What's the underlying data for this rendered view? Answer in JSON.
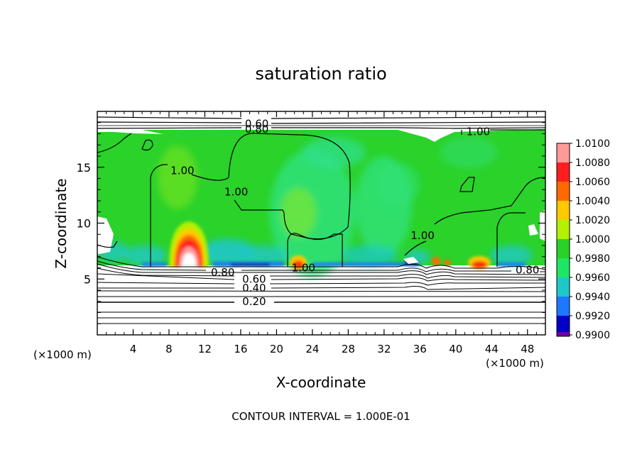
{
  "chart_data": {
    "type": "heatmap",
    "title": "saturation ratio",
    "xlabel": "X-coordinate",
    "ylabel": "Z-coordinate",
    "x_unit": "(×1000 m)",
    "z_unit": "(×1000 m)",
    "xlim": [
      0,
      50
    ],
    "ylim": [
      0,
      20
    ],
    "x_ticks": [
      4,
      8,
      12,
      16,
      20,
      24,
      28,
      32,
      36,
      40,
      44,
      48
    ],
    "y_ticks": [
      5,
      10,
      15
    ],
    "footer": "CONTOUR INTERVAL = 1.000E-01",
    "colorbar": {
      "levels": [
        "1.0100",
        "1.0080",
        "1.0060",
        "1.0040",
        "1.0020",
        "1.0000",
        "0.9980",
        "0.9960",
        "0.9940",
        "0.9920",
        "0.9900"
      ],
      "colors": [
        "#ff9a9a",
        "#ff1e1e",
        "#ff6a00",
        "#ffc800",
        "#b4f000",
        "#28d228",
        "#1ee664",
        "#1ec8c8",
        "#1e78ff",
        "#0000c8",
        "#7000a8"
      ]
    },
    "contour_labels": [
      {
        "text": "0.60",
        "x": 17.8,
        "z": 18.9
      },
      {
        "text": "0.80",
        "x": 17.8,
        "z": 18.4
      },
      {
        "text": "1.00",
        "x": 42.5,
        "z": 18.2
      },
      {
        "text": "1.00",
        "x": 9.5,
        "z": 14.7
      },
      {
        "text": "1.00",
        "x": 15.5,
        "z": 12.8
      },
      {
        "text": "1.00",
        "x": 36.3,
        "z": 8.9
      },
      {
        "text": "1.00",
        "x": 23.0,
        "z": 6.0
      },
      {
        "text": "0.80",
        "x": 14.0,
        "z": 5.6
      },
      {
        "text": "0.60",
        "x": 17.5,
        "z": 5.0
      },
      {
        "text": "0.40",
        "x": 17.5,
        "z": 4.2
      },
      {
        "text": "0.20",
        "x": 17.5,
        "z": 3.0
      },
      {
        "text": "0.80",
        "x": 48.0,
        "z": 5.8
      }
    ]
  }
}
